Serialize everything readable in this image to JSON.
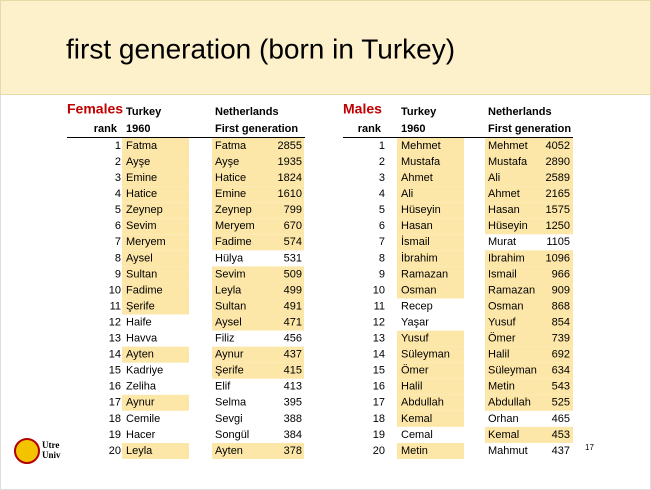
{
  "title": "first generation (born in Turkey)",
  "females": {
    "label": "Females",
    "headers": [
      "Turkey",
      "Netherlands",
      "rank",
      "1960",
      "First generation"
    ],
    "rows": [
      [
        1,
        "Fatma",
        "Fatma",
        2855
      ],
      [
        2,
        "Ayşe",
        "Ayşe",
        1935
      ],
      [
        3,
        "Emine",
        "Hatice",
        1824
      ],
      [
        4,
        "Hatice",
        "Emine",
        1610
      ],
      [
        5,
        "Zeynep",
        "Zeynep",
        799
      ],
      [
        6,
        "Sevim",
        "Meryem",
        670
      ],
      [
        7,
        "Meryem",
        "Fadime",
        574
      ],
      [
        8,
        "Aysel",
        "Hülya",
        531
      ],
      [
        9,
        "Sultan",
        "Sevim",
        509
      ],
      [
        10,
        "Fadime",
        "Leyla",
        499
      ],
      [
        11,
        "Şerife",
        "Sultan",
        491
      ],
      [
        12,
        "Haife",
        "Aysel",
        471
      ],
      [
        13,
        "Havva",
        "Filiz",
        456
      ],
      [
        14,
        "Ayten",
        "Aynur",
        437
      ],
      [
        15,
        "Kadriye",
        "Şerife",
        415
      ],
      [
        16,
        "Zeliha",
        "Elif",
        413
      ],
      [
        17,
        "Aynur",
        "Selma",
        395
      ],
      [
        18,
        "Cemile",
        "Sevgi",
        388
      ],
      [
        19,
        "Hacer",
        "Songül",
        384
      ],
      [
        20,
        "Leyla",
        "Ayten",
        378
      ]
    ]
  },
  "males": {
    "label": "Males",
    "headers": [
      "Turkey",
      "Netherlands",
      "rank",
      "1960",
      "First generation"
    ],
    "rows": [
      [
        1,
        "Mehmet",
        "Mehmet",
        4052
      ],
      [
        2,
        "Mustafa",
        "Mustafa",
        2890
      ],
      [
        3,
        "Ahmet",
        "Ali",
        2589
      ],
      [
        4,
        "Ali",
        "Ahmet",
        2165
      ],
      [
        5,
        "Hüseyin",
        "Hasan",
        1575
      ],
      [
        6,
        "Hasan",
        "Hüseyin",
        1250
      ],
      [
        7,
        "İsmail",
        "Murat",
        1105
      ],
      [
        8,
        "İbrahim",
        "Ibrahim",
        1096
      ],
      [
        9,
        "Ramazan",
        "Ismail",
        966
      ],
      [
        10,
        "Osman",
        "Ramazan",
        909
      ],
      [
        11,
        "Recep",
        "Osman",
        868
      ],
      [
        12,
        "Yaşar",
        "Yusuf",
        854
      ],
      [
        13,
        "Yusuf",
        "Ömer",
        739
      ],
      [
        14,
        "Süleyman",
        "Halil",
        692
      ],
      [
        15,
        "Ömer",
        "Süleyman",
        634
      ],
      [
        16,
        "Halil",
        "Metin",
        543
      ],
      [
        17,
        "Abdullah",
        "Abdullah",
        525
      ],
      [
        18,
        "Kemal",
        "Orhan",
        465
      ],
      [
        19,
        "Cemal",
        "Kemal",
        453
      ],
      [
        20,
        "Metin",
        "Mahmut",
        437
      ]
    ]
  },
  "footer": {
    "logo": [
      "Utre",
      "Univ"
    ],
    "page": 17
  }
}
